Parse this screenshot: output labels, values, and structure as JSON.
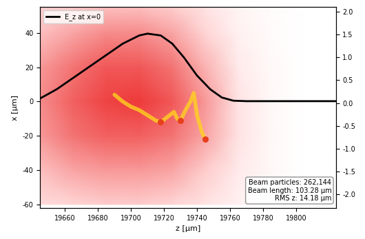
{
  "chart_data": {
    "type": "line",
    "x_label": "z [μm]",
    "y_label": "x [μm]",
    "xlim": [
      19645,
      19824
    ],
    "xticks": [
      19660,
      19680,
      19700,
      19720,
      19740,
      19760,
      19780,
      19800
    ],
    "ylim": [
      -62,
      55
    ],
    "yticks": [
      -60,
      -40,
      -20,
      0,
      20,
      40
    ],
    "y2lim": [
      -2.3,
      2.1
    ],
    "y2ticks": [
      -2.0,
      -1.5,
      -1.0,
      -0.5,
      0.0,
      0.5,
      1.0,
      1.5,
      2.0
    ],
    "legend": "upper left",
    "series": [
      {
        "name": "E_z at x=0",
        "color": "#000000",
        "axis": "y2",
        "type": "line",
        "x": [
          19645,
          19655,
          19665,
          19675,
          19685,
          19695,
          19705,
          19710,
          19718,
          19725,
          19732,
          19740,
          19748,
          19755,
          19762,
          19770,
          19824
        ],
        "values": [
          0.1,
          0.3,
          0.55,
          0.8,
          1.05,
          1.3,
          1.48,
          1.52,
          1.48,
          1.3,
          1.0,
          0.6,
          0.3,
          0.12,
          0.05,
          0.04,
          0.04
        ]
      }
    ],
    "field": {
      "z": [
        19645,
        19665,
        19685,
        19705,
        19725,
        19745,
        19765,
        19785,
        19805,
        19825
      ],
      "x": [
        -60,
        -40,
        -20,
        0,
        20,
        40,
        55
      ],
      "values": [
        [
          0.25,
          0.3,
          0.35,
          0.35,
          0.3,
          0.2,
          0.1,
          0.03,
          0,
          0
        ],
        [
          0.4,
          0.5,
          0.55,
          0.55,
          0.5,
          0.35,
          0.15,
          0.05,
          0,
          0
        ],
        [
          0.55,
          0.7,
          0.8,
          0.8,
          0.7,
          0.5,
          0.2,
          0.05,
          0,
          0
        ],
        [
          0.6,
          0.8,
          0.95,
          1.0,
          0.85,
          0.55,
          0.2,
          0.05,
          0,
          0
        ],
        [
          0.55,
          0.7,
          0.85,
          0.85,
          0.7,
          0.45,
          0.15,
          0.04,
          0,
          0
        ],
        [
          0.4,
          0.5,
          0.6,
          0.6,
          0.5,
          0.3,
          0.1,
          0.03,
          0,
          0
        ],
        [
          0.3,
          0.35,
          0.4,
          0.4,
          0.35,
          0.2,
          0.08,
          0.02,
          0,
          0
        ]
      ]
    },
    "beam": {
      "color": "#ffd21f",
      "z": [
        19690,
        19695,
        19700,
        19705,
        19710,
        19715,
        19718,
        19722,
        19726,
        19728,
        19730,
        19733,
        19736,
        19738,
        19740,
        19743,
        19745
      ],
      "x": [
        4,
        0,
        -3,
        -5,
        -8,
        -11,
        -12,
        -9,
        -6,
        -10,
        -11,
        -5,
        0,
        5,
        -8,
        -18,
        -22
      ]
    },
    "beam_peaks": {
      "color": "#e8401c",
      "z": [
        19718,
        19730,
        19745
      ],
      "x": [
        -12,
        -11,
        -22
      ]
    },
    "info": [
      "Beam particles: 262,144",
      "Beam length: 103.28 μm",
      "RMS z: 14.18 μm"
    ]
  }
}
